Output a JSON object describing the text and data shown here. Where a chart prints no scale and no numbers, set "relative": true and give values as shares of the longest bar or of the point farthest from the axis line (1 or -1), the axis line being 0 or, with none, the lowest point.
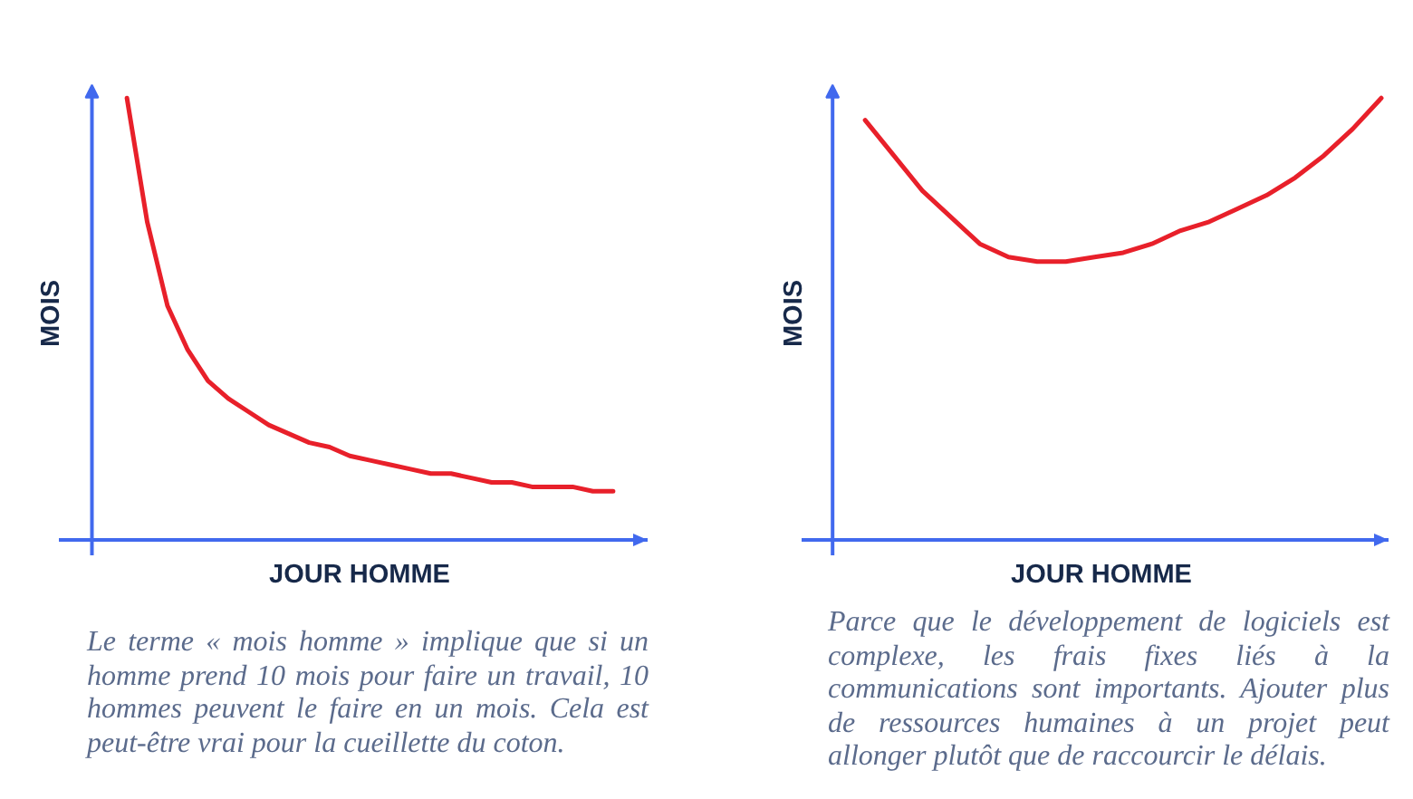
{
  "chart_data": [
    {
      "type": "line",
      "relative": true,
      "tick_labels": false,
      "xlabel": "JOUR HOMME",
      "ylabel": "MOIS",
      "categories": [
        null,
        null,
        null,
        null,
        null,
        null,
        null,
        null,
        null,
        null,
        null,
        null,
        null,
        null,
        null,
        null,
        null,
        null,
        null,
        null,
        null,
        null,
        null,
        null,
        null
      ],
      "series": [
        {
          "color": "#e8202a",
          "values": [
            1,
            0.72,
            0.53,
            0.43,
            0.36,
            0.32,
            0.29,
            0.26,
            0.24,
            0.22,
            0.21,
            0.19,
            0.18,
            0.17,
            0.16,
            0.15,
            0.15,
            0.14,
            0.13,
            0.13,
            0.12,
            0.12,
            0.12,
            0.11,
            0.11
          ]
        }
      ],
      "annotations": [
        "Le terme « mois homme » implique que si un homme prend 10 mois pour faire un travail, 10 hommes peuvent le faire en un mois. Cela est peut-être vrai pour la cueillette du coton."
      ]
    },
    {
      "type": "line",
      "relative": true,
      "tick_labels": false,
      "xlabel": "JOUR HOMME",
      "ylabel": "MOIS",
      "categories": [
        null,
        null,
        null,
        null,
        null,
        null,
        null,
        null,
        null,
        null,
        null,
        null,
        null,
        null,
        null,
        null,
        null,
        null,
        null
      ],
      "series": [
        {
          "color": "#e8202a",
          "values": [
            0.95,
            0.87,
            0.79,
            0.73,
            0.67,
            0.64,
            0.63,
            0.63,
            0.64,
            0.65,
            0.67,
            0.7,
            0.72,
            0.75,
            0.78,
            0.82,
            0.87,
            0.93,
            1
          ]
        }
      ],
      "annotations": [
        "Parce que le développement de logiciels est complexe, les frais fixes liés à la communications sont importants. Ajouter plus de ressources humaines à un projet peut allonger plutôt que de raccourcir le délais."
      ]
    }
  ]
}
